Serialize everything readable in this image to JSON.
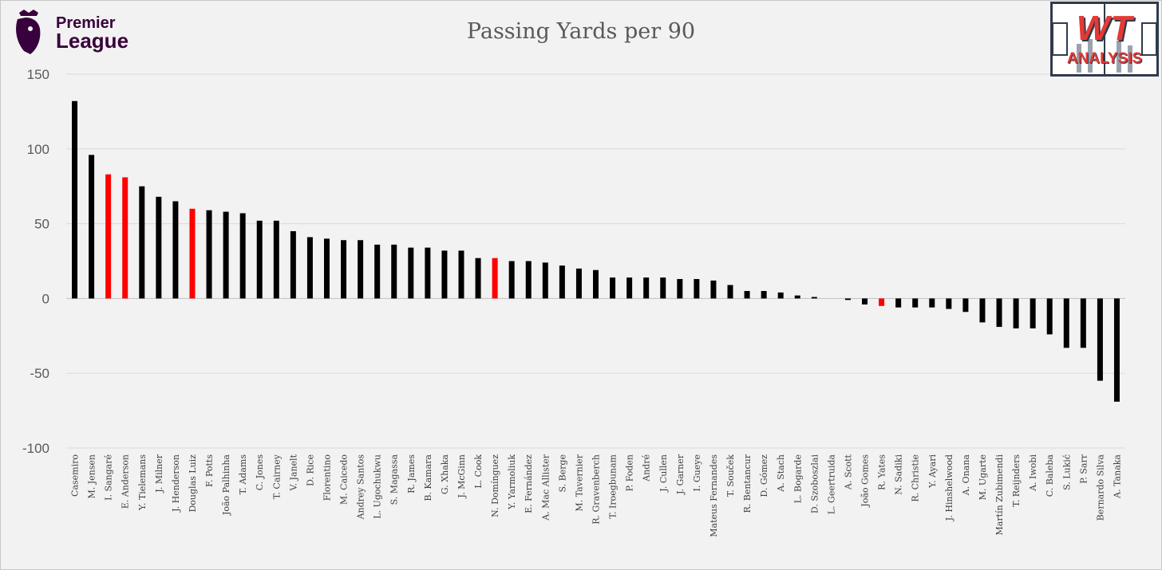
{
  "header": {
    "title": "Passing Yards per 90",
    "league_logo_line1": "Premier",
    "league_logo_line2": "League",
    "brand_logo_main": "WT",
    "brand_logo_sub": "ANALYSIS"
  },
  "colors": {
    "default_bar": "#000000",
    "highlight_bar": "#ff0000",
    "grid": "#d9d9d9",
    "league_purple": "#38003c"
  },
  "chart_data": {
    "type": "bar",
    "title": "Passing Yards per 90",
    "xlabel": "",
    "ylabel": "",
    "ylim": [
      -100,
      150
    ],
    "yticks": [
      150,
      100,
      50,
      0,
      -50,
      -100
    ],
    "grid": true,
    "categories": [
      "Casemiro",
      "M. Jensen",
      "I. Sangaré",
      "E. Anderson",
      "Y. Tielemans",
      "J. Milner",
      "J. Henderson",
      "Douglas Luiz",
      "F. Potts",
      "João Palhinha",
      "T. Adams",
      "C. Jones",
      "T. Cairney",
      "V. Janelt",
      "D. Rice",
      "Florentino",
      "M. Caicedo",
      "Andrey Santos",
      "L. Ugochukwu",
      "S. Magassa",
      "R. James",
      "B. Kamara",
      "G. Xhaka",
      "J. McGinn",
      "L. Cook",
      "N. Domínguez",
      "Y. Yarmoliuk",
      "E. Fernández",
      "A. Mac Allister",
      "S. Berge",
      "M. Tavernier",
      "R. Gravenberch",
      "T. Iroegbunam",
      "P. Foden",
      "André",
      "J. Cullen",
      "J. Garner",
      "I. Gueye",
      "Mateus Fernandes",
      "T. Souček",
      "R. Bentancur",
      "D. Gómez",
      "A. Stach",
      "L. Bogarde",
      "D. Szoboszlai",
      "L. Geertruida",
      "A. Scott",
      "João Gomes",
      "R. Yates",
      "N. Sadiki",
      "R. Christie",
      "Y. Ayari",
      "J. Hinshelwood",
      "A. Onana",
      "M. Ugarte",
      "Martín Zubimendi",
      "T. Reijnders",
      "A. Iwobi",
      "C. Baleba",
      "S. Lukić",
      "P. Sarr",
      "Bernardo Silva",
      "A. Tanaka"
    ],
    "values": [
      132,
      96,
      83,
      81,
      75,
      68,
      65,
      60,
      59,
      58,
      57,
      52,
      52,
      45,
      41,
      40,
      39,
      39,
      36,
      36,
      34,
      34,
      32,
      32,
      27,
      27,
      25,
      25,
      24,
      22,
      20,
      19,
      14,
      14,
      14,
      14,
      13,
      13,
      12,
      9,
      5,
      5,
      4,
      2,
      1,
      0,
      -1,
      -4,
      -5,
      -6,
      -6,
      -6,
      -7,
      -9,
      -16,
      -19,
      -20,
      -20,
      -24,
      -33,
      -33,
      -55,
      -69
    ],
    "highlighted": [
      "I. Sangaré",
      "E. Anderson",
      "Douglas Luiz",
      "N. Domínguez",
      "R. Yates"
    ]
  }
}
